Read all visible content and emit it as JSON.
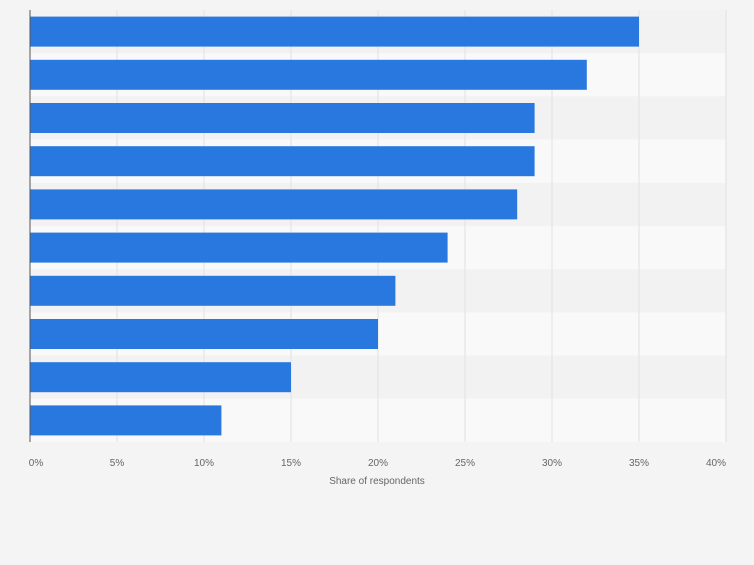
{
  "chart_data": {
    "type": "bar",
    "orientation": "horizontal",
    "categories": [
      "",
      "",
      "",
      "",
      "",
      "",
      "",
      "",
      "",
      ""
    ],
    "values": [
      35,
      32,
      29,
      29,
      28,
      24,
      21,
      20,
      15,
      11
    ],
    "xlabel": "Share of respondents",
    "ylabel": "",
    "xlim": [
      0,
      40
    ],
    "ticks": [
      0,
      5,
      10,
      15,
      20,
      25,
      30,
      35,
      40
    ],
    "tick_labels": [
      "0%",
      "5%",
      "10%",
      "15%",
      "20%",
      "25%",
      "30%",
      "35%",
      "40%"
    ],
    "grid": true,
    "colors": {
      "bar": "#2878df",
      "band_dark": "#f2f2f2",
      "band_light": "#f9f9f9",
      "grid": "#e1e1e1",
      "axis": "#555555",
      "text": "#666666",
      "background": "#f4f4f4"
    }
  }
}
